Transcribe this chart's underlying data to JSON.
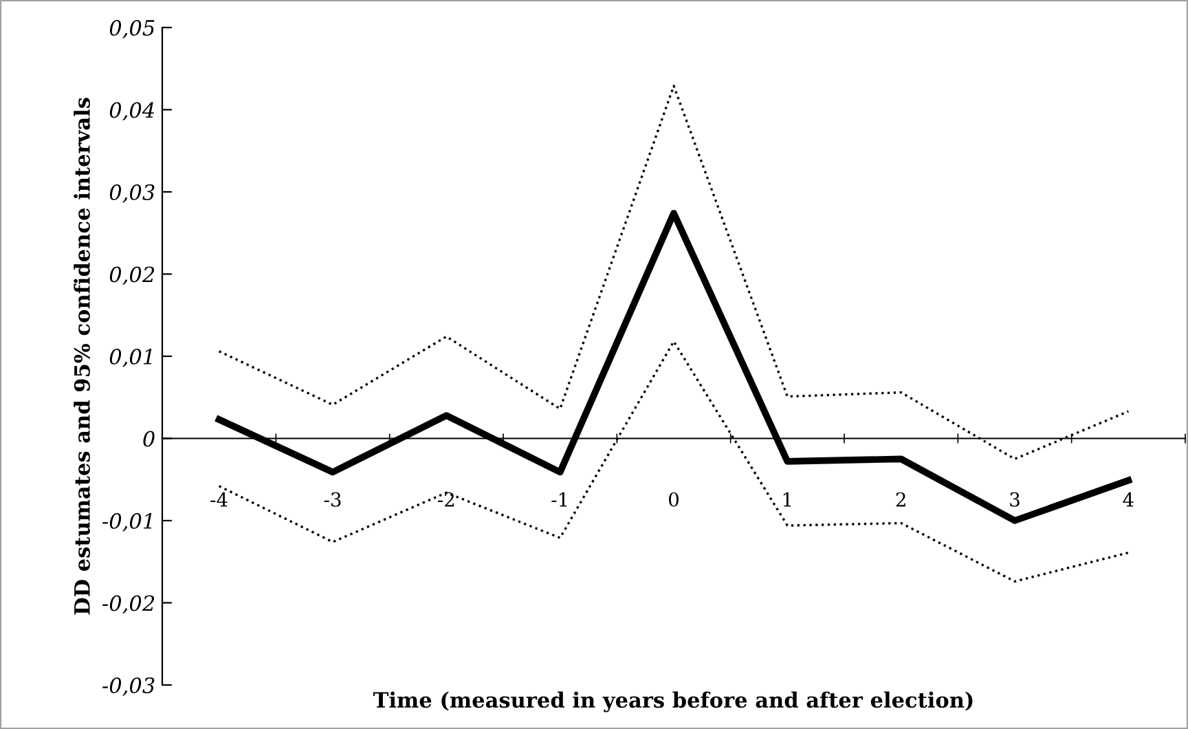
{
  "chart_data": {
    "type": "line",
    "xlabel": "Time (measured in years before and after election)",
    "ylabel": "DD estumates and 95% confidence intervals",
    "categories": [
      "-4",
      "-3",
      "-2",
      "-1",
      "0",
      "1",
      "2",
      "3",
      "4"
    ],
    "series": [
      {
        "color": "#000000",
        "line_style": "solid",
        "values": [
          0.0023,
          -0.0041,
          0.0028,
          -0.0041,
          0.0274,
          -0.0028,
          -0.0025,
          -0.01,
          -0.0051
        ]
      },
      {
        "color": "#000000",
        "line_style": "dotted",
        "values": [
          0.0106,
          0.0041,
          0.0124,
          0.0036,
          0.0429,
          0.0051,
          0.0056,
          -0.0025,
          0.0033
        ]
      },
      {
        "color": "#000000",
        "line_style": "dotted",
        "values": [
          -0.0058,
          -0.0126,
          -0.0066,
          -0.0121,
          0.0118,
          -0.0106,
          -0.0103,
          -0.0174,
          -0.0139
        ]
      }
    ],
    "ylim": [
      -0.03,
      0.05
    ],
    "yticks": [
      {
        "value": -0.03,
        "label": "-0,03"
      },
      {
        "value": -0.02,
        "label": "-0,02"
      },
      {
        "value": -0.01,
        "label": "-0,01"
      },
      0,
      {
        "value": 0.01,
        "label": "0,01"
      },
      {
        "value": 0.02,
        "label": "0,02"
      },
      {
        "value": 0.03,
        "label": "0,03"
      },
      {
        "value": 0.04,
        "label": "0,04"
      },
      {
        "value": 0.05,
        "label": "0,05"
      }
    ],
    "marker": "none"
  }
}
